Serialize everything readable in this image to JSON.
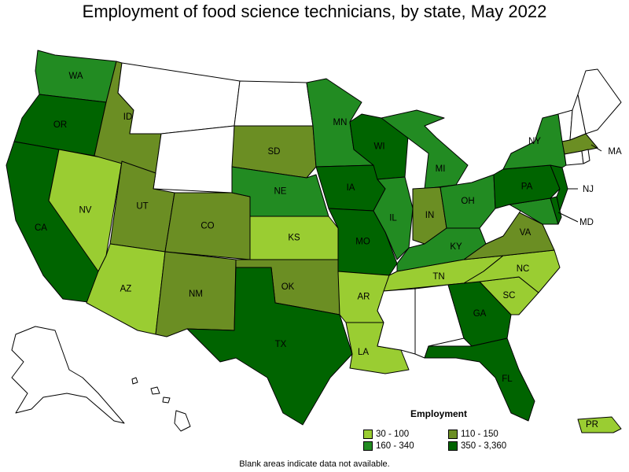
{
  "title": "Employment of food science technicians, by state, May 2022",
  "legend": {
    "title": "Employment",
    "ranges": [
      {
        "label": "30 - 100",
        "color": "#9acd32"
      },
      {
        "label": "110 - 150",
        "color": "#6b8e23"
      },
      {
        "label": "160 - 340",
        "color": "#228b22"
      },
      {
        "label": "350 - 3,360",
        "color": "#006400"
      }
    ],
    "no_data_color": "#ffffff"
  },
  "footnote": "Blank areas indicate data not available.",
  "states": {
    "WA": {
      "label": "WA",
      "class": "160 - 340"
    },
    "OR": {
      "label": "OR",
      "class": "350 - 3,360"
    },
    "CA": {
      "label": "CA",
      "class": "350 - 3,360"
    },
    "NV": {
      "label": "NV",
      "class": "30 - 100"
    },
    "ID": {
      "label": "ID",
      "class": "110 - 150"
    },
    "MT": {
      "label": "",
      "class": null
    },
    "WY": {
      "label": "",
      "class": null
    },
    "UT": {
      "label": "UT",
      "class": "110 - 150"
    },
    "AZ": {
      "label": "AZ",
      "class": "30 - 100"
    },
    "CO": {
      "label": "CO",
      "class": "110 - 150"
    },
    "NM": {
      "label": "NM",
      "class": "110 - 150"
    },
    "ND": {
      "label": "",
      "class": null
    },
    "SD": {
      "label": "SD",
      "class": "110 - 150"
    },
    "NE": {
      "label": "NE",
      "class": "160 - 340"
    },
    "KS": {
      "label": "KS",
      "class": "30 - 100"
    },
    "OK": {
      "label": "OK",
      "class": "110 - 150"
    },
    "TX": {
      "label": "TX",
      "class": "350 - 3,360"
    },
    "MN": {
      "label": "MN",
      "class": "160 - 340"
    },
    "IA": {
      "label": "IA",
      "class": "350 - 3,360"
    },
    "MO": {
      "label": "MO",
      "class": "350 - 3,360"
    },
    "AR": {
      "label": "AR",
      "class": "30 - 100"
    },
    "LA": {
      "label": "LA",
      "class": "30 - 100"
    },
    "WI": {
      "label": "WI",
      "class": "350 - 3,360"
    },
    "IL": {
      "label": "IL",
      "class": "160 - 340"
    },
    "MI": {
      "label": "MI",
      "class": "160 - 340"
    },
    "IN": {
      "label": "IN",
      "class": "110 - 150"
    },
    "OH": {
      "label": "OH",
      "class": "160 - 340"
    },
    "KY": {
      "label": "KY",
      "class": "160 - 340"
    },
    "TN": {
      "label": "TN",
      "class": "30 - 100"
    },
    "MS": {
      "label": "",
      "class": null
    },
    "AL": {
      "label": "",
      "class": null
    },
    "GA": {
      "label": "GA",
      "class": "350 - 3,360"
    },
    "FL": {
      "label": "FL",
      "class": "350 - 3,360"
    },
    "SC": {
      "label": "SC",
      "class": "30 - 100"
    },
    "NC": {
      "label": "NC",
      "class": "30 - 100"
    },
    "VA": {
      "label": "VA",
      "class": "110 - 150"
    },
    "WV": {
      "label": "",
      "class": null
    },
    "MD": {
      "label": "MD",
      "class": "160 - 340"
    },
    "DE": {
      "label": "",
      "class": "350 - 3,360"
    },
    "NJ": {
      "label": "NJ",
      "class": "350 - 3,360"
    },
    "PA": {
      "label": "PA",
      "class": "350 - 3,360"
    },
    "NY": {
      "label": "NY",
      "class": "160 - 340"
    },
    "CT": {
      "label": "",
      "class": null
    },
    "RI": {
      "label": "",
      "class": null
    },
    "MA": {
      "label": "MA",
      "class": "110 - 150"
    },
    "VT": {
      "label": "",
      "class": null
    },
    "NH": {
      "label": "",
      "class": null
    },
    "ME": {
      "label": "",
      "class": null
    },
    "AK": {
      "label": "",
      "class": null
    },
    "HI": {
      "label": "",
      "class": null
    },
    "PR": {
      "label": "PR",
      "class": "30 - 100"
    }
  }
}
